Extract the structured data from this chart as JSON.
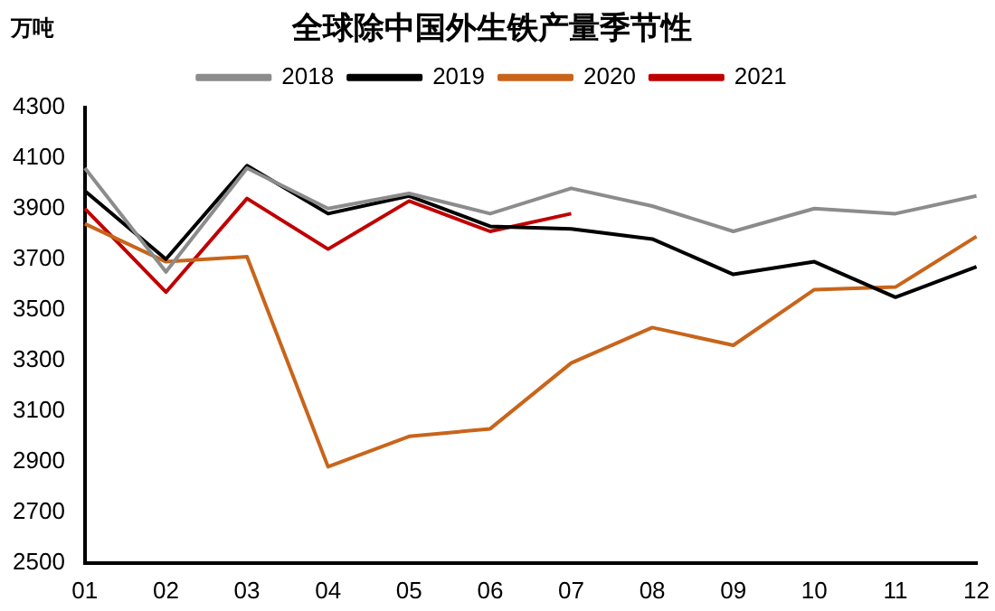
{
  "chart_data": {
    "type": "line",
    "title": "全球除中国外生铁产量季节性",
    "ylabel": "万吨",
    "categories": [
      "01",
      "02",
      "03",
      "04",
      "05",
      "06",
      "07",
      "08",
      "09",
      "10",
      "11",
      "12"
    ],
    "series": [
      {
        "name": "2018",
        "color": "#8c8c8c",
        "values": [
          4060,
          3650,
          4060,
          3900,
          3960,
          3880,
          3980,
          3910,
          3810,
          3900,
          3880,
          3950
        ]
      },
      {
        "name": "2019",
        "color": "#000000",
        "values": [
          3970,
          3700,
          4070,
          3880,
          3950,
          3830,
          3820,
          3780,
          3640,
          3690,
          3550,
          3670
        ]
      },
      {
        "name": "2020",
        "color": "#c8651b",
        "values": [
          3840,
          3690,
          3710,
          2880,
          3000,
          3030,
          3290,
          3430,
          3360,
          3580,
          3590,
          3790
        ]
      },
      {
        "name": "2021",
        "color": "#c00000",
        "values": [
          3900,
          3570,
          3940,
          3740,
          3930,
          3810,
          3880,
          null,
          null,
          null,
          null,
          null
        ]
      }
    ],
    "ylim": [
      2500,
      4300
    ],
    "yticks": [
      2500,
      2700,
      2900,
      3100,
      3300,
      3500,
      3700,
      3900,
      4100,
      4300
    ],
    "grid": false,
    "legend": "top",
    "marker": "none",
    "line_style": "solid"
  }
}
